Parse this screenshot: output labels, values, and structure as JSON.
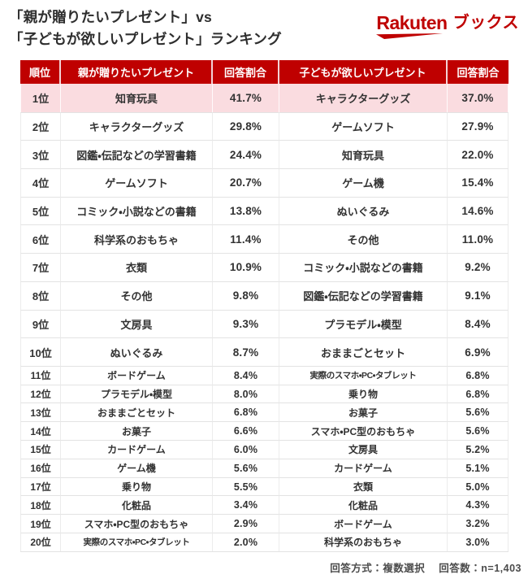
{
  "title": {
    "line1": "「親が贈りたいプレゼント」vs",
    "line2": "「子どもが欲しいプレゼント」ランキング"
  },
  "logo": {
    "brand": "Rakuten",
    "suffix": "ブックス"
  },
  "footer": {
    "method": "回答方式：複数選択",
    "count": "回答数：n=1,403"
  },
  "colors": {
    "brand_red": "#bf0000",
    "header_bg": "#bf0000",
    "highlight_pink": "#fadce0",
    "text_dark": "#323232",
    "note_gray": "#4b4b4b",
    "grid_line": "#e3e3e3"
  },
  "chart_data": {
    "type": "table",
    "title": "「親が贈りたいプレゼント」vs「子どもが欲しいプレゼント」ランキング",
    "note": "回答方式：複数選択 回答数：n=1,403",
    "columns": [
      "順位",
      "親が贈りたいプレゼント",
      "回答割合",
      "子どもが欲しいプレゼント",
      "回答割合"
    ],
    "rows": [
      {
        "rank": "1位",
        "parent_item": "知育玩具",
        "parent_share": "41.7%",
        "child_item": "キャラクターグッズ",
        "child_share": "37.0%",
        "highlight": true
      },
      {
        "rank": "2位",
        "parent_item": "キャラクターグッズ",
        "parent_share": "29.8%",
        "child_item": "ゲームソフト",
        "child_share": "27.9%"
      },
      {
        "rank": "3位",
        "parent_item": "図鑑・伝記などの学習書籍",
        "parent_share": "24.4%",
        "child_item": "知育玩具",
        "child_share": "22.0%"
      },
      {
        "rank": "4位",
        "parent_item": "ゲームソフト",
        "parent_share": "20.7%",
        "child_item": "ゲーム機",
        "child_share": "15.4%"
      },
      {
        "rank": "5位",
        "parent_item": "コミック・小説などの書籍",
        "parent_share": "13.8%",
        "child_item": "ぬいぐるみ",
        "child_share": "14.6%"
      },
      {
        "rank": "6位",
        "parent_item": "科学系のおもちゃ",
        "parent_share": "11.4%",
        "child_item": "その他",
        "child_share": "11.0%"
      },
      {
        "rank": "7位",
        "parent_item": "衣類",
        "parent_share": "10.9%",
        "child_item": "コミック・小説などの書籍",
        "child_share": "9.2%"
      },
      {
        "rank": "8位",
        "parent_item": "その他",
        "parent_share": "9.8%",
        "child_item": "図鑑・伝記などの学習書籍",
        "child_share": "9.1%"
      },
      {
        "rank": "9位",
        "parent_item": "文房具",
        "parent_share": "9.3%",
        "child_item": "プラモデル・模型",
        "child_share": "8.4%"
      },
      {
        "rank": "10位",
        "parent_item": "ぬいぐるみ",
        "parent_share": "8.7%",
        "child_item": "おままごとセット",
        "child_share": "6.9%"
      },
      {
        "rank": "11位",
        "parent_item": "ボードゲーム",
        "parent_share": "8.4%",
        "child_item": "実際のスマホ・PC・タブレット",
        "child_share": "6.8%"
      },
      {
        "rank": "12位",
        "parent_item": "プラモデル・模型",
        "parent_share": "8.0%",
        "child_item": "乗り物",
        "child_share": "6.8%"
      },
      {
        "rank": "13位",
        "parent_item": "おままごとセット",
        "parent_share": "6.8%",
        "child_item": "お菓子",
        "child_share": "5.6%"
      },
      {
        "rank": "14位",
        "parent_item": "お菓子",
        "parent_share": "6.6%",
        "child_item": "スマホ・PC型のおもちゃ",
        "child_share": "5.6%"
      },
      {
        "rank": "15位",
        "parent_item": "カードゲーム",
        "parent_share": "6.0%",
        "child_item": "文房具",
        "child_share": "5.2%"
      },
      {
        "rank": "16位",
        "parent_item": "ゲーム機",
        "parent_share": "5.6%",
        "child_item": "カードゲーム",
        "child_share": "5.1%"
      },
      {
        "rank": "17位",
        "parent_item": "乗り物",
        "parent_share": "5.5%",
        "child_item": "衣類",
        "child_share": "5.0%"
      },
      {
        "rank": "18位",
        "parent_item": "化粧品",
        "parent_share": "3.4%",
        "child_item": "化粧品",
        "child_share": "4.3%"
      },
      {
        "rank": "19位",
        "parent_item": "スマホ・PC型のおもちゃ",
        "parent_share": "2.9%",
        "child_item": "ボードゲーム",
        "child_share": "3.2%"
      },
      {
        "rank": "20位",
        "parent_item": "実際のスマホ・PC・タブレット",
        "parent_share": "2.0%",
        "child_item": "科学系のおもちゃ",
        "child_share": "3.0%"
      }
    ]
  }
}
